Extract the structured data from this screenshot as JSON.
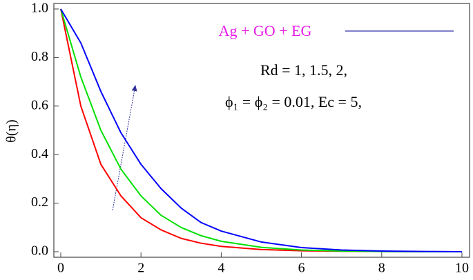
{
  "chart_data": {
    "type": "line",
    "y_label": "θ(η)",
    "legend_label": "Ag + GO + EG",
    "annotations": [
      "Rd = 1, 1.5, 2,",
      "ϕ₁ = ϕ₂ = 0.01, Ec = 5,"
    ],
    "x": [
      0,
      0.5,
      1,
      1.5,
      2,
      2.5,
      3,
      3.5,
      4,
      5,
      6,
      7,
      8,
      9,
      10
    ],
    "series": [
      {
        "color": "#ff0000",
        "values": [
          1,
          0.6,
          0.36,
          0.23,
          0.14,
          0.09,
          0.055,
          0.035,
          0.022,
          0.009,
          0.004,
          0.002,
          0.001,
          0,
          0
        ]
      },
      {
        "color": "#00e000",
        "values": [
          1,
          0.72,
          0.5,
          0.34,
          0.23,
          0.15,
          0.1,
          0.066,
          0.043,
          0.018,
          0.007,
          0.003,
          0.001,
          0,
          0
        ]
      },
      {
        "color": "#0000ff",
        "values": [
          1,
          0.86,
          0.66,
          0.49,
          0.36,
          0.26,
          0.18,
          0.12,
          0.085,
          0.04,
          0.017,
          0.007,
          0.003,
          0.001,
          0
        ]
      }
    ],
    "xlim": [
      0,
      10
    ],
    "xticks": [
      0,
      2,
      4,
      6,
      8,
      10
    ],
    "ylim": [
      0,
      1
    ],
    "yticks": [
      {
        "value": 0,
        "label": "0.0"
      },
      {
        "value": 0.2,
        "label": "0.2"
      },
      {
        "value": 0.4,
        "label": "0.4"
      },
      {
        "value": 0.6,
        "label": "0.6"
      },
      {
        "value": 0.8,
        "label": "0.8"
      },
      {
        "value": 1,
        "label": "1.0"
      }
    ]
  }
}
